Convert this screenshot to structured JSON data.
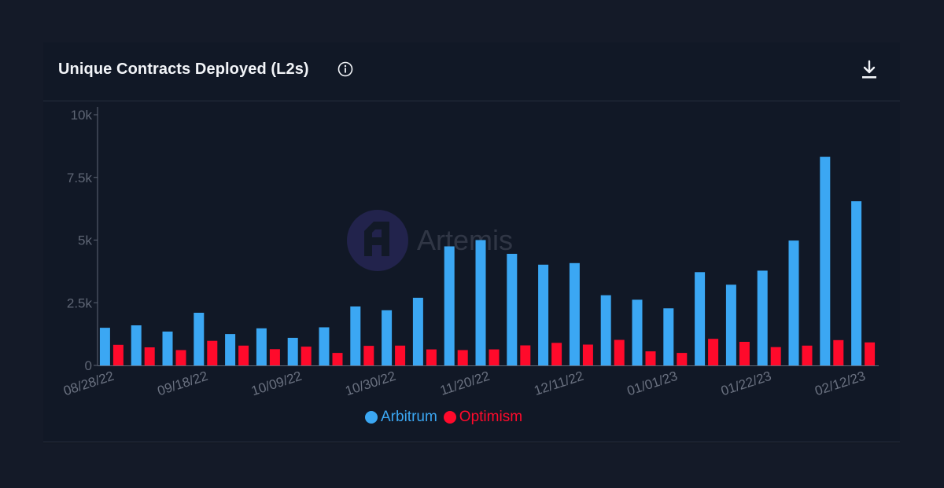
{
  "header": {
    "title": "Unique Contracts Deployed (L2s)",
    "info_icon": "info-circle-icon",
    "download_icon": "download-icon"
  },
  "watermark": {
    "text": "Artemis",
    "logo_icon": "artemis-logo-icon"
  },
  "colors": {
    "arbitrum": "#3ba7f3",
    "optimism": "#ff0a2b",
    "background": "#141a28",
    "card": "#111826"
  },
  "chart_data": {
    "type": "bar",
    "title": "Unique Contracts Deployed (L2s)",
    "xlabel": "",
    "ylabel": "",
    "ylim": [
      0,
      10000
    ],
    "yticks": [
      0,
      2500,
      5000,
      7500,
      10000
    ],
    "ytick_labels": [
      "0",
      "2.5k",
      "5k",
      "7.5k",
      "10k"
    ],
    "categories": [
      "08/28/22",
      "09/04/22",
      "09/11/22",
      "09/18/22",
      "09/25/22",
      "10/02/22",
      "10/09/22",
      "10/16/22",
      "10/23/22",
      "10/30/22",
      "11/06/22",
      "11/13/22",
      "11/20/22",
      "11/27/22",
      "12/04/22",
      "12/11/22",
      "12/18/22",
      "12/25/22",
      "01/01/23",
      "01/08/23",
      "01/15/23",
      "01/22/23",
      "01/29/23",
      "02/05/23",
      "02/12/23"
    ],
    "xtick_labels": [
      "08/28/22",
      "09/18/22",
      "10/09/22",
      "10/30/22",
      "11/20/22",
      "12/11/22",
      "01/01/23",
      "01/22/23",
      "02/12/23"
    ],
    "legend": "bottom-center",
    "grid": false,
    "series": [
      {
        "name": "Arbitrum",
        "color": "#3ba7f3",
        "values": [
          1500,
          1600,
          1350,
          2100,
          1250,
          1480,
          1100,
          1520,
          2350,
          2200,
          2700,
          4750,
          5000,
          4450,
          4020,
          4080,
          2800,
          2620,
          2280,
          3720,
          3220,
          3780,
          4980,
          8320,
          6550
        ]
      },
      {
        "name": "Optimism",
        "color": "#ff0a2b",
        "values": [
          820,
          720,
          610,
          980,
          790,
          650,
          750,
          500,
          780,
          790,
          640,
          610,
          640,
          800,
          900,
          830,
          1020,
          560,
          500,
          1060,
          940,
          730,
          790,
          1010,
          920
        ]
      }
    ]
  }
}
